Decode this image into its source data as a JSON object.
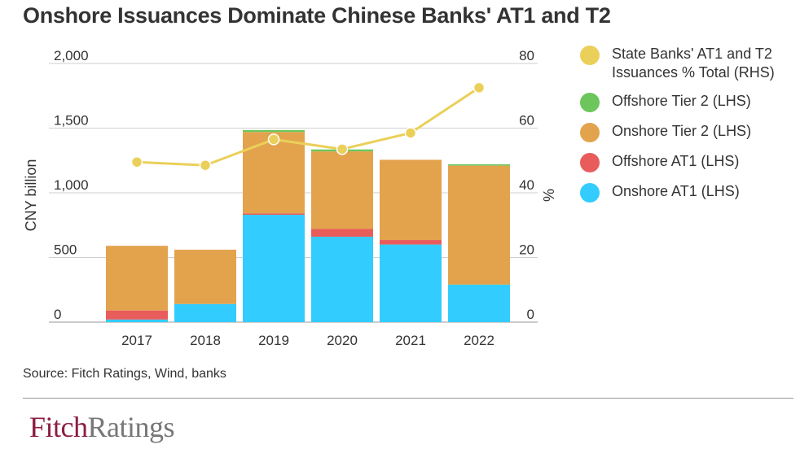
{
  "title": "Onshore Issuances Dominate Chinese Banks' AT1 and T2",
  "source": "Source: Fitch Ratings, Wind, banks",
  "logo": {
    "part1": "Fitch",
    "part2": "Ratings"
  },
  "chart_data": {
    "type": "bar",
    "stacked": true,
    "title": "Onshore Issuances Dominate Chinese Banks' AT1 and T2",
    "categories": [
      "2017",
      "2018",
      "2019",
      "2020",
      "2021",
      "2022"
    ],
    "ylabel": "CNY billion",
    "y2label": "%",
    "ylim": [
      0,
      2000
    ],
    "y2lim": [
      0,
      80
    ],
    "yticks": [
      "0",
      "500",
      "1,000",
      "1,500",
      "2,000"
    ],
    "y2ticks": [
      "0",
      "20",
      "40",
      "60",
      "80"
    ],
    "grid": true,
    "legend_position": "right",
    "series": [
      {
        "name": "Onshore AT1 (LHS)",
        "color": "#33ccff",
        "values": [
          20,
          140,
          830,
          660,
          600,
          290
        ]
      },
      {
        "name": "Offshore AT1 (LHS)",
        "color": "#e85c5c",
        "values": [
          70,
          0,
          10,
          60,
          35,
          0
        ]
      },
      {
        "name": "Onshore Tier 2 (LHS)",
        "color": "#e3a34d",
        "values": [
          500,
          420,
          630,
          600,
          620,
          920
        ]
      },
      {
        "name": "Offshore Tier 2 (LHS)",
        "color": "#6cc65c",
        "values": [
          0,
          0,
          15,
          15,
          0,
          10
        ]
      }
    ],
    "line_series": {
      "name": "State Banks' AT1 and T2 Issuances % Total (RHS)",
      "axis": "right",
      "color": "#ead05a",
      "values": [
        49.5,
        48.5,
        56.5,
        53.5,
        58.5,
        72.5
      ]
    },
    "legend": [
      {
        "label": "State Banks' AT1 and T2 Issuances % Total (RHS)",
        "color": "#ead05a"
      },
      {
        "label": "Offshore Tier 2 (LHS)",
        "color": "#6cc65c"
      },
      {
        "label": "Onshore Tier 2 (LHS)",
        "color": "#e3a34d"
      },
      {
        "label": "Offshore AT1 (LHS)",
        "color": "#e85c5c"
      },
      {
        "label": "Onshore AT1 (LHS)",
        "color": "#33ccff"
      }
    ]
  }
}
